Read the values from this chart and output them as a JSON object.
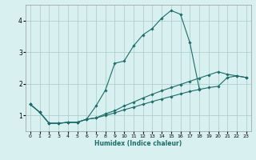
{
  "title": "",
  "xlabel": "Humidex (Indice chaleur)",
  "bg_color": "#d8f0f0",
  "grid_color": "#a8c8c8",
  "line_color": "#1a6e6a",
  "x_data": [
    0,
    1,
    2,
    3,
    4,
    5,
    6,
    7,
    8,
    9,
    10,
    11,
    12,
    13,
    14,
    15,
    16,
    17,
    18,
    19,
    20,
    21,
    22,
    23
  ],
  "line_main": [
    1.35,
    1.1,
    0.75,
    0.75,
    0.78,
    0.78,
    0.88,
    1.3,
    1.8,
    2.65,
    2.72,
    3.2,
    3.55,
    3.75,
    4.08,
    4.32,
    4.2,
    3.3,
    1.85,
    null,
    null,
    null,
    null,
    null
  ],
  "line_low": [
    1.35,
    1.1,
    0.75,
    0.75,
    0.78,
    0.78,
    0.88,
    0.92,
    1.0,
    1.08,
    1.18,
    1.26,
    1.35,
    1.44,
    1.52,
    1.6,
    1.68,
    1.76,
    1.82,
    1.88,
    1.92,
    2.2,
    2.25,
    2.2
  ],
  "line_mid": [
    1.35,
    1.1,
    0.75,
    0.75,
    0.78,
    0.78,
    0.88,
    0.92,
    1.05,
    1.15,
    1.3,
    1.42,
    1.55,
    1.67,
    1.78,
    1.88,
    1.98,
    2.08,
    2.18,
    2.28,
    2.38,
    2.3,
    2.25,
    2.2
  ],
  "ylim": [
    0.5,
    4.5
  ],
  "xlim": [
    -0.5,
    23.5
  ],
  "yticks": [
    1,
    2,
    3,
    4
  ],
  "xticks": [
    0,
    1,
    2,
    3,
    4,
    5,
    6,
    7,
    8,
    9,
    10,
    11,
    12,
    13,
    14,
    15,
    16,
    17,
    18,
    19,
    20,
    21,
    22,
    23
  ]
}
